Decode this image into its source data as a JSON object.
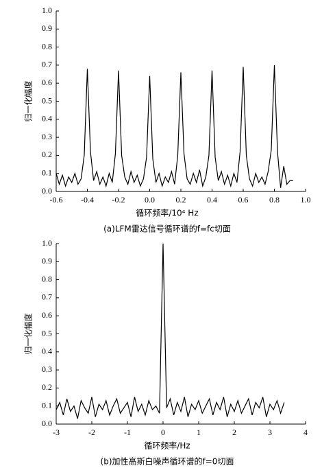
{
  "chart_data": [
    {
      "type": "line",
      "y_label": "归一化幅度",
      "x_label": "循环频率/10⁴ Hz",
      "caption": "(a)LFM雷达信号循环谱的f=fc切面",
      "color": "#000000",
      "x": [
        -0.6,
        -0.58,
        -0.56,
        -0.54,
        -0.52,
        -0.5,
        -0.48,
        -0.46,
        -0.44,
        -0.42,
        -0.4,
        -0.38,
        -0.36,
        -0.34,
        -0.32,
        -0.3,
        -0.28,
        -0.26,
        -0.24,
        -0.22,
        -0.2,
        -0.18,
        -0.16,
        -0.14,
        -0.12,
        -0.1,
        -0.08,
        -0.06,
        -0.04,
        -0.02,
        0,
        0.02,
        0.04,
        0.06,
        0.08,
        0.1,
        0.12,
        0.14,
        0.16,
        0.18,
        0.2,
        0.22,
        0.24,
        0.26,
        0.28,
        0.3,
        0.32,
        0.34,
        0.36,
        0.38,
        0.4,
        0.42,
        0.44,
        0.46,
        0.48,
        0.5,
        0.52,
        0.54,
        0.56,
        0.58,
        0.6,
        0.62,
        0.64,
        0.66,
        0.68,
        0.7,
        0.72,
        0.74,
        0.76,
        0.78,
        0.8,
        0.82,
        0.84,
        0.86,
        0.88,
        0.9,
        0.92
      ],
      "values": [
        0.1,
        0.04,
        0.09,
        0.03,
        0.08,
        0.05,
        0.1,
        0.04,
        0.07,
        0.2,
        0.68,
        0.22,
        0.06,
        0.11,
        0.04,
        0.08,
        0.03,
        0.1,
        0.05,
        0.21,
        0.67,
        0.2,
        0.08,
        0.04,
        0.11,
        0.05,
        0.09,
        0.03,
        0.07,
        0.19,
        0.64,
        0.18,
        0.05,
        0.1,
        0.03,
        0.08,
        0.05,
        0.11,
        0.04,
        0.2,
        0.66,
        0.21,
        0.07,
        0.04,
        0.1,
        0.05,
        0.12,
        0.03,
        0.08,
        0.2,
        0.67,
        0.19,
        0.06,
        0.11,
        0.04,
        0.09,
        0.03,
        0.1,
        0.05,
        0.22,
        0.69,
        0.2,
        0.07,
        0.03,
        0.1,
        0.05,
        0.08,
        0.04,
        0.11,
        0.23,
        0.7,
        0.22,
        0.02,
        0.14,
        0.04,
        0.06,
        0.06
      ],
      "xlim": [
        -0.6,
        1.0
      ],
      "xticks": [
        -0.6,
        -0.4,
        -0.2,
        {
          "value": 0,
          "label": "0.0"
        },
        0.2,
        0.4,
        0.6,
        0.8,
        {
          "value": 1,
          "label": "1.0"
        }
      ],
      "ylim": [
        0,
        1.0
      ],
      "yticks": [
        {
          "value": 0,
          "label": "0.0"
        },
        0.1,
        0.2,
        0.3,
        0.4,
        0.5,
        0.6,
        0.7,
        0.8,
        0.9,
        {
          "value": 1,
          "label": "1.0"
        }
      ]
    },
    {
      "type": "line",
      "y_label": "归一化幅度",
      "x_label": "循环频率/Hz",
      "caption": "(b)加性高斯白噪声循环谱的f=0切面",
      "color": "#000000",
      "x": [
        -3,
        -2.9,
        -2.8,
        -2.7,
        -2.6,
        -2.5,
        -2.4,
        -2.3,
        -2.2,
        -2.1,
        -2,
        -1.9,
        -1.8,
        -1.7,
        -1.6,
        -1.5,
        -1.4,
        -1.3,
        -1.2,
        -1.1,
        -1,
        -0.9,
        -0.8,
        -0.7,
        -0.6,
        -0.5,
        -0.4,
        -0.3,
        -0.2,
        -0.1,
        0,
        0.1,
        0.2,
        0.3,
        0.4,
        0.5,
        0.6,
        0.7,
        0.8,
        0.9,
        1,
        1.1,
        1.2,
        1.3,
        1.4,
        1.5,
        1.6,
        1.7,
        1.8,
        1.9,
        2,
        2.1,
        2.2,
        2.3,
        2.4,
        2.5,
        2.6,
        2.7,
        2.8,
        2.9,
        3,
        3.1,
        3.2,
        3.3,
        3.4
      ],
      "values": [
        0.08,
        0.12,
        0.05,
        0.14,
        0.07,
        0.1,
        0.03,
        0.13,
        0.09,
        0.06,
        0.15,
        0.04,
        0.11,
        0.08,
        0.13,
        0.05,
        0.1,
        0.14,
        0.06,
        0.09,
        0.12,
        0.04,
        0.15,
        0.07,
        0.11,
        0.05,
        0.13,
        0.08,
        0.1,
        0.06,
        1,
        0.09,
        0.14,
        0.05,
        0.12,
        0.07,
        0.15,
        0.04,
        0.11,
        0.08,
        0.13,
        0.06,
        0.1,
        0.14,
        0.05,
        0.12,
        0.08,
        0.15,
        0.04,
        0.11,
        0.07,
        0.13,
        0.06,
        0.1,
        0.14,
        0.05,
        0.12,
        0.09,
        0.15,
        0.04,
        0.11,
        0.08,
        0.13,
        0.06,
        0.12
      ],
      "xlim": [
        -3,
        4
      ],
      "xticks": [
        -3,
        -2,
        -1,
        0,
        1,
        2,
        3,
        4
      ],
      "ylim": [
        0,
        1.0
      ],
      "yticks": [
        {
          "value": 0,
          "label": "0.0"
        },
        0.1,
        0.2,
        0.3,
        0.4,
        0.5,
        0.6,
        0.7,
        0.8,
        0.9,
        {
          "value": 1,
          "label": "1.0"
        }
      ]
    }
  ]
}
